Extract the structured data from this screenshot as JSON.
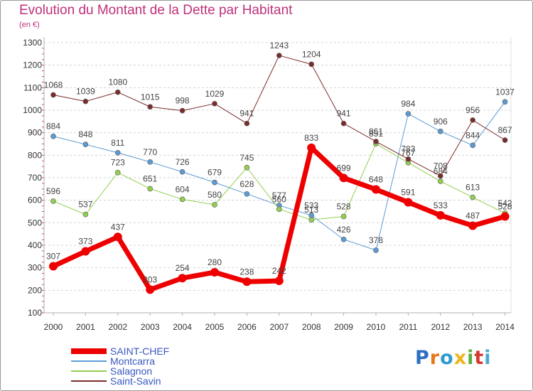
{
  "title": "Evolution du Montant de la Dette par Habitant",
  "subtitle": "(en €)",
  "logo": {
    "letters": [
      {
        "ch": "P",
        "color": "#2f6fc3"
      },
      {
        "ch": "r",
        "color": "#e7771b"
      },
      {
        "ch": "o",
        "color": "#2f9bd0"
      },
      {
        "ch": "x",
        "color": "#f0b41b"
      },
      {
        "ch": "i",
        "color": "#5cae3c"
      },
      {
        "ch": "t",
        "color": "#d6392e"
      },
      {
        "ch": "i",
        "color": "#4aa8d8"
      }
    ]
  },
  "chart_data": {
    "type": "line",
    "title": "Evolution du Montant de la Dette par Habitant",
    "ylabel": "(en €)",
    "xlabel": "",
    "ylim": [
      100,
      1300
    ],
    "yticks": [
      100,
      200,
      300,
      400,
      500,
      600,
      700,
      800,
      900,
      1000,
      1100,
      1200,
      1300
    ],
    "x": [
      "2000",
      "2001",
      "2002",
      "2003",
      "2004",
      "2005",
      "2006",
      "2007",
      "2008",
      "2009",
      "2010",
      "2011",
      "2012",
      "2013",
      "2014"
    ],
    "grid": "horizontal dashed",
    "legend": "bottom-left",
    "series": [
      {
        "name": "SAINT-CHEF",
        "color": "#ee0000",
        "width": 7,
        "values": [
          307,
          373,
          437,
          203,
          254,
          280,
          238,
          242,
          833,
          699,
          648,
          591,
          533,
          487,
          528
        ]
      },
      {
        "name": "Montcarra",
        "color": "#5b9bd5",
        "width": 1,
        "values": [
          884,
          848,
          811,
          770,
          726,
          679,
          628,
          577,
          533,
          426,
          378,
          984,
          906,
          844,
          1037
        ]
      },
      {
        "name": "Salagnon",
        "color": "#92d050",
        "width": 1,
        "values": [
          596,
          537,
          723,
          651,
          604,
          580,
          745,
          560,
          513,
          528,
          851,
          767,
          684,
          613,
          542
        ]
      },
      {
        "name": "Saint-Savin",
        "color": "#7b2b2b",
        "width": 1,
        "values": [
          1068,
          1039,
          1080,
          1015,
          998,
          1029,
          941,
          1243,
          1204,
          941,
          861,
          783,
          708,
          956,
          867
        ]
      }
    ]
  }
}
